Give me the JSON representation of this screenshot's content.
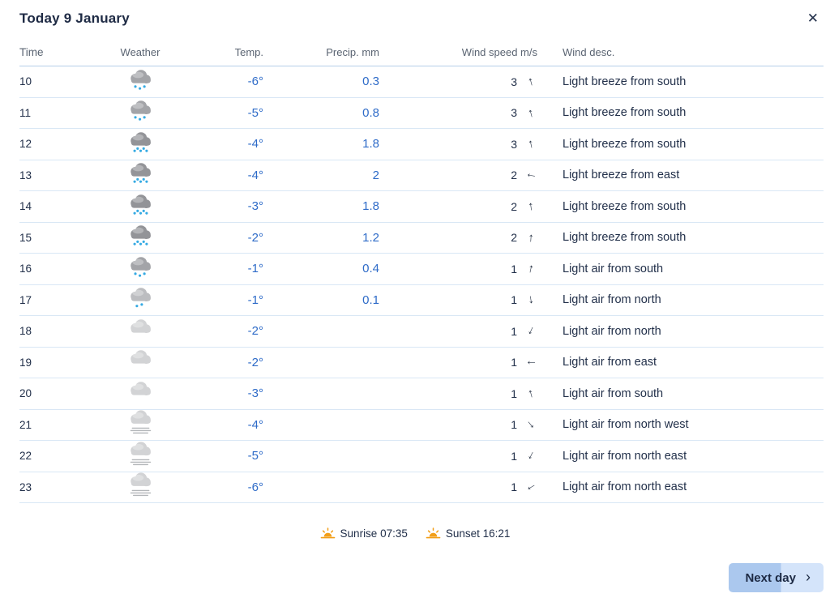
{
  "modal": {
    "title": "Today 9 January",
    "close_glyph": "✕"
  },
  "table": {
    "headers": {
      "time": "Time",
      "weather": "Weather",
      "temp": "Temp.",
      "precip": "Precip. mm",
      "wind_speed": "Wind speed m/s",
      "wind_desc": "Wind desc."
    },
    "rows": [
      {
        "time": "10",
        "icon": "light-snow",
        "temp": "-6°",
        "precip": "0.3",
        "wind": "3",
        "arrow_deg": -15,
        "desc": "Light breeze from south"
      },
      {
        "time": "11",
        "icon": "light-snow",
        "temp": "-5°",
        "precip": "0.8",
        "wind": "3",
        "arrow_deg": -15,
        "desc": "Light breeze from south"
      },
      {
        "time": "12",
        "icon": "snow",
        "temp": "-4°",
        "precip": "1.8",
        "wind": "3",
        "arrow_deg": -12,
        "desc": "Light breeze from south"
      },
      {
        "time": "13",
        "icon": "snow",
        "temp": "-4°",
        "precip": "2",
        "wind": "2",
        "arrow_deg": -80,
        "desc": "Light breeze from east"
      },
      {
        "time": "14",
        "icon": "snow",
        "temp": "-3°",
        "precip": "1.8",
        "wind": "2",
        "arrow_deg": -8,
        "desc": "Light breeze from south"
      },
      {
        "time": "15",
        "icon": "snow",
        "temp": "-2°",
        "precip": "1.2",
        "wind": "2",
        "arrow_deg": 4,
        "desc": "Light breeze from south"
      },
      {
        "time": "16",
        "icon": "light-snow",
        "temp": "-1°",
        "precip": "0.4",
        "wind": "1",
        "arrow_deg": 12,
        "desc": "Light air from south"
      },
      {
        "time": "17",
        "icon": "very-light-snow",
        "temp": "-1°",
        "precip": "0.1",
        "wind": "1",
        "arrow_deg": 172,
        "desc": "Light air from north"
      },
      {
        "time": "18",
        "icon": "cloudy",
        "temp": "-2°",
        "precip": "",
        "wind": "1",
        "arrow_deg": 205,
        "desc": "Light air from north"
      },
      {
        "time": "19",
        "icon": "cloudy",
        "temp": "-2°",
        "precip": "",
        "wind": "1",
        "arrow_deg": -90,
        "desc": "Light air from east"
      },
      {
        "time": "20",
        "icon": "cloudy",
        "temp": "-3°",
        "precip": "",
        "wind": "1",
        "arrow_deg": -15,
        "desc": "Light air from south"
      },
      {
        "time": "21",
        "icon": "fog",
        "temp": "-4°",
        "precip": "",
        "wind": "1",
        "arrow_deg": 140,
        "desc": "Light air from north west"
      },
      {
        "time": "22",
        "icon": "fog",
        "temp": "-5°",
        "precip": "",
        "wind": "1",
        "arrow_deg": 207,
        "desc": "Light air from north east"
      },
      {
        "time": "23",
        "icon": "fog",
        "temp": "-6°",
        "precip": "",
        "wind": "1",
        "arrow_deg": 240,
        "desc": "Light air from north east"
      }
    ]
  },
  "sun": {
    "sunrise": "Sunrise 07:35",
    "sunset": "Sunset 16:21"
  },
  "footer": {
    "next_day_label": "Next day",
    "chevron": "›"
  },
  "colors": {
    "value_blue": "#2e6bc8",
    "text_dark": "#22304a",
    "header_gray": "#5a6472",
    "divider": "#d9e7f5",
    "button_bg": "#abc8ee",
    "sun_orange": "#f29e17",
    "snow_dot_blue": "#35aae3"
  }
}
